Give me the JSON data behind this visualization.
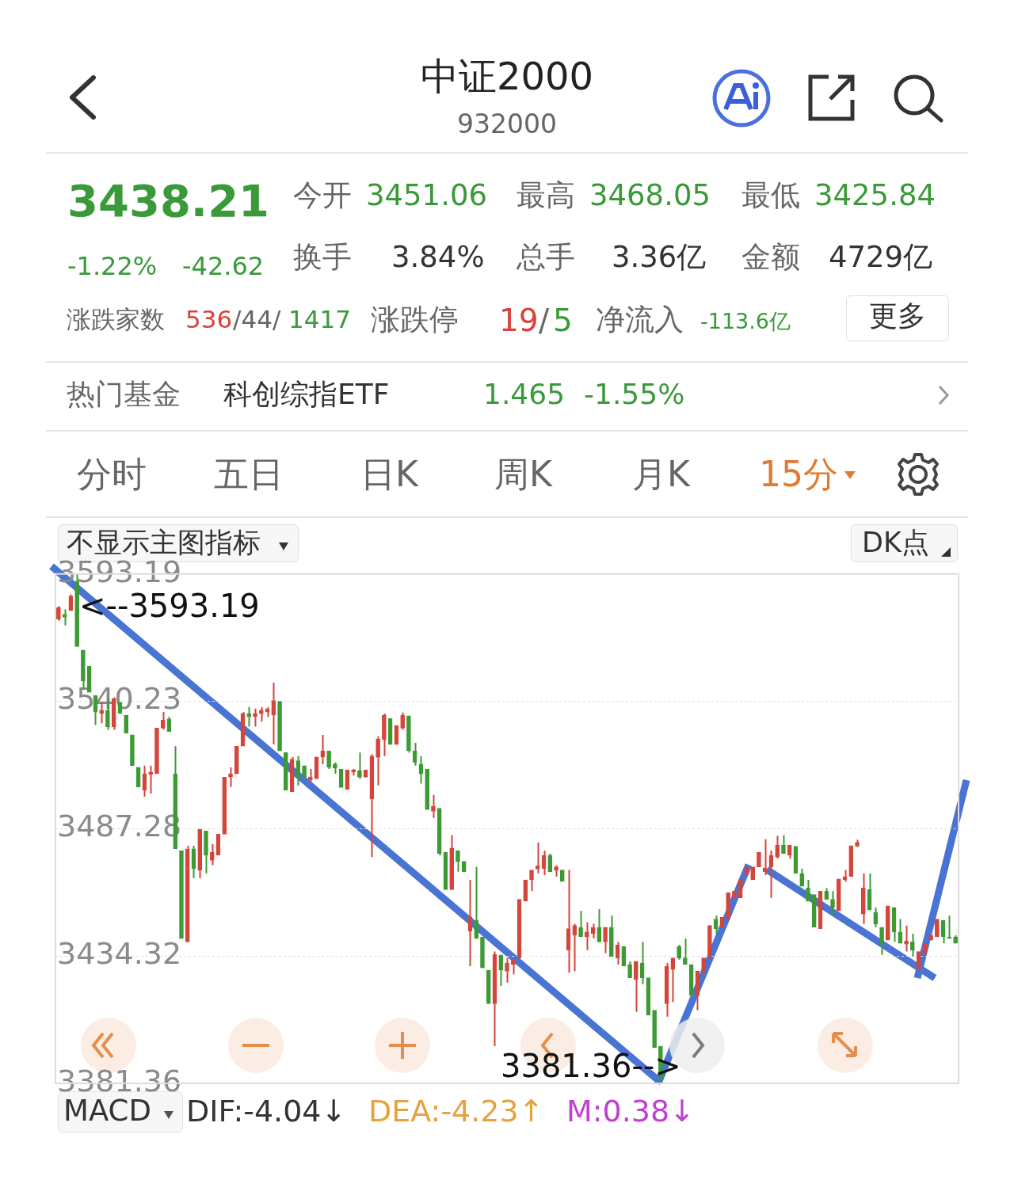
{
  "chart_data": {
    "type": "candlestick",
    "title": "中证2000",
    "subtitle": "932000",
    "categories": [
      null,
      null,
      null,
      null,
      null,
      null,
      null,
      null,
      null,
      null,
      null,
      null,
      null,
      null,
      null,
      null,
      null,
      null,
      null,
      null,
      null,
      null,
      null,
      null,
      null,
      null,
      null,
      null,
      null,
      null,
      null,
      null,
      null,
      null,
      null,
      null,
      null,
      null,
      null,
      null,
      null,
      null,
      null,
      null,
      null,
      null,
      null,
      null,
      null,
      null,
      null,
      null,
      null,
      null,
      null,
      null,
      null,
      null,
      null,
      null,
      null,
      null,
      null,
      null,
      null,
      null,
      null,
      null,
      null,
      null,
      null,
      null,
      null,
      null,
      null,
      null,
      null,
      null,
      null,
      null,
      null,
      null,
      null,
      null,
      null,
      null,
      null,
      null,
      null,
      null,
      null,
      null,
      null,
      null,
      null,
      null,
      null,
      null,
      null,
      null,
      null,
      null,
      null,
      null,
      null,
      null,
      null,
      null,
      null,
      null,
      null,
      null,
      null,
      null,
      null,
      null,
      null,
      null,
      null,
      null,
      null,
      null,
      null,
      null,
      null,
      null,
      null,
      null,
      null,
      null,
      null,
      null,
      null,
      null,
      null,
      null,
      null,
      null,
      null,
      null,
      null,
      null,
      null,
      null,
      null,
      null,
      null
    ],
    "ylim": [
      3381.36,
      3593.19
    ],
    "yticks": [
      3381.36,
      3434.32,
      3487.28,
      3540.23,
      3593.19
    ],
    "grid": "y",
    "tick_labels": "y",
    "legend": false,
    "ohlc": [
      [
        3574.5,
        3579.9,
        3573.8,
        3579.2
      ],
      [
        3576.5,
        3578.5,
        3571.8,
        3575.2
      ],
      [
        3577.9,
        3584.7,
        3577.9,
        3584.0
      ],
      [
        3590.1,
        3593.19,
        3563.0,
        3563.0
      ],
      [
        3561.6,
        3561.6,
        3545.3,
        3548.7
      ],
      [
        3554.8,
        3554.8,
        3544.0,
        3544.0
      ],
      [
        3542.6,
        3542.6,
        3530.4,
        3535.8
      ],
      [
        3535.2,
        3539.9,
        3531.1,
        3536.5
      ],
      [
        3536.5,
        3541.3,
        3528.4,
        3529.7
      ],
      [
        3529.7,
        3541.9,
        3528.4,
        3541.3
      ],
      [
        3539.9,
        3539.9,
        3535.2,
        3535.2
      ],
      [
        3534.5,
        3534.5,
        3527.0,
        3527.0
      ],
      [
        3526.3,
        3526.3,
        3513.5,
        3513.5
      ],
      [
        3512.8,
        3512.8,
        3504.6,
        3504.6
      ],
      [
        3503.3,
        3513.5,
        3500.6,
        3510.1
      ],
      [
        3509.8,
        3513.5,
        3501.9,
        3510.8
      ],
      [
        3510.1,
        3529.1,
        3510.1,
        3529.1
      ],
      [
        3529.1,
        3535.8,
        3528.4,
        3532.4
      ],
      [
        3532.9,
        3533.8,
        3527.7,
        3527.7
      ],
      [
        3510.1,
        3521.6,
        3478.9,
        3478.9
      ],
      [
        3478.2,
        3478.2,
        3441.6,
        3441.6
      ],
      [
        3440.2,
        3480.2,
        3440.2,
        3478.9
      ],
      [
        3478.9,
        3480.2,
        3466.7,
        3470.7
      ],
      [
        3470.1,
        3487.0,
        3466.7,
        3487.0
      ],
      [
        3486.3,
        3486.3,
        3468.7,
        3476.2
      ],
      [
        3474.1,
        3480.9,
        3472.1,
        3477.5
      ],
      [
        3476.2,
        3485.0,
        3476.2,
        3485.0
      ],
      [
        3485.0,
        3508.7,
        3485.0,
        3508.7
      ],
      [
        3508.7,
        3512.8,
        3504.6,
        3510.1
      ],
      [
        3510.1,
        3521.6,
        3510.1,
        3521.6
      ],
      [
        3521.6,
        3535.8,
        3521.6,
        3535.2
      ],
      [
        3535.2,
        3537.9,
        3529.7,
        3533.8
      ],
      [
        3533.8,
        3537.2,
        3529.7,
        3535.2
      ],
      [
        3535.2,
        3537.9,
        3531.8,
        3536.5
      ],
      [
        3535.8,
        3537.9,
        3533.8,
        3537.2
      ],
      [
        3534.5,
        3548.0,
        3522.3,
        3540.6
      ],
      [
        3540.2,
        3540.2,
        3519.6,
        3519.6
      ],
      [
        3518.9,
        3518.9,
        3503.3,
        3503.3
      ],
      [
        3502.6,
        3517.1,
        3502.6,
        3516.2
      ],
      [
        3515.5,
        3517.5,
        3505.3,
        3508.7
      ],
      [
        3513.5,
        3513.5,
        3508.7,
        3508.7
      ],
      [
        3507.4,
        3512.1,
        3506.7,
        3508.7
      ],
      [
        3508.0,
        3517.1,
        3508.0,
        3517.1
      ],
      [
        3517.1,
        3526.3,
        3514.1,
        3519.6
      ],
      [
        3519.6,
        3519.6,
        3512.1,
        3512.8
      ],
      [
        3514.1,
        3514.8,
        3510.1,
        3512.5
      ],
      [
        3512.1,
        3512.1,
        3504.4,
        3504.4
      ],
      [
        3503.6,
        3511.7,
        3503.6,
        3511.7
      ],
      [
        3510.8,
        3512.1,
        3509.4,
        3511.7
      ],
      [
        3511.4,
        3518.9,
        3508.0,
        3508.7
      ],
      [
        3508.7,
        3511.7,
        3508.7,
        3511.7
      ],
      [
        3499.5,
        3518.2,
        3475.5,
        3517.5
      ],
      [
        3516.9,
        3525.7,
        3505.3,
        3524.7
      ],
      [
        3524.3,
        3535.2,
        3517.5,
        3534.5
      ],
      [
        3533.1,
        3533.1,
        3522.3,
        3522.3
      ],
      [
        3522.3,
        3530.1,
        3522.3,
        3530.1
      ],
      [
        3529.1,
        3535.6,
        3528.4,
        3534.5
      ],
      [
        3534.2,
        3534.2,
        3518.9,
        3519.6
      ],
      [
        3519.6,
        3523.0,
        3513.5,
        3514.8
      ],
      [
        3514.1,
        3517.5,
        3506.0,
        3510.1
      ],
      [
        3512.1,
        3512.1,
        3495.2,
        3495.2
      ],
      [
        3494.5,
        3501.3,
        3491.8,
        3496.5
      ],
      [
        3495.8,
        3495.8,
        3476.2,
        3476.9
      ],
      [
        3477.5,
        3477.5,
        3461.9,
        3461.9
      ],
      [
        3461.9,
        3484.6,
        3461.9,
        3479.2
      ],
      [
        3478.2,
        3478.2,
        3469.4,
        3473.5
      ],
      [
        3473.7,
        3473.7,
        3469.4,
        3469.4
      ],
      [
        3444.7,
        3466.0,
        3430.1,
        3450.7
      ],
      [
        3449.1,
        3471.4,
        3441.6,
        3441.6
      ],
      [
        3442.3,
        3442.3,
        3429.4,
        3429.4
      ],
      [
        3428.4,
        3428.4,
        3414.5,
        3414.5
      ],
      [
        3414.5,
        3436.2,
        3396.8,
        3435.1
      ],
      [
        3434.8,
        3434.8,
        3421.9,
        3428.4
      ],
      [
        3428.0,
        3433.5,
        3423.3,
        3431.4
      ],
      [
        3430.8,
        3432.8,
        3426.7,
        3432.8
      ],
      [
        3433.5,
        3457.9,
        3433.5,
        3457.9
      ],
      [
        3457.2,
        3466.0,
        3457.2,
        3466.0
      ],
      [
        3466.0,
        3470.1,
        3461.3,
        3470.1
      ],
      [
        3470.5,
        3481.6,
        3468.7,
        3471.8
      ],
      [
        3470.7,
        3478.2,
        3468.0,
        3476.2
      ],
      [
        3476.2,
        3476.9,
        3469.4,
        3469.4
      ],
      [
        3470.1,
        3472.1,
        3467.4,
        3471.4
      ],
      [
        3470.1,
        3470.1,
        3465.3,
        3465.3
      ],
      [
        3436.8,
        3470.1,
        3427.4,
        3445.7
      ],
      [
        3443.0,
        3447.7,
        3428.0,
        3447.0
      ],
      [
        3446.3,
        3453.1,
        3442.3,
        3442.3
      ],
      [
        3442.3,
        3448.4,
        3436.8,
        3444.3
      ],
      [
        3443.6,
        3447.7,
        3441.6,
        3446.3
      ],
      [
        3446.3,
        3453.8,
        3440.2,
        3440.2
      ],
      [
        3440.2,
        3446.3,
        3435.5,
        3446.3
      ],
      [
        3446.3,
        3451.1,
        3434.1,
        3434.1
      ],
      [
        3433.5,
        3440.2,
        3430.8,
        3438.9
      ],
      [
        3438.2,
        3438.2,
        3430.1,
        3430.1
      ],
      [
        3430.8,
        3432.1,
        3425.3,
        3425.3
      ],
      [
        3424.6,
        3432.1,
        3411.1,
        3432.1
      ],
      [
        3431.4,
        3440.2,
        3422.6,
        3425.3
      ],
      [
        3425.3,
        3425.3,
        3409.7,
        3409.7
      ],
      [
        3411.8,
        3411.8,
        3396.2,
        3396.2
      ],
      [
        3396.8,
        3396.8,
        3381.36,
        3384.0
      ],
      [
        3414.5,
        3431.4,
        3409.1,
        3430.1
      ],
      [
        3428.7,
        3433.5,
        3415.2,
        3433.5
      ],
      [
        3438.2,
        3438.9,
        3432.8,
        3433.5
      ],
      [
        3433.5,
        3441.6,
        3430.8,
        3430.8
      ],
      [
        3430.8,
        3430.8,
        3417.9,
        3417.9
      ],
      [
        3417.9,
        3428.0,
        3411.8,
        3428.0
      ],
      [
        3427.4,
        3433.5,
        3427.4,
        3433.5
      ],
      [
        3433.5,
        3447.0,
        3433.5,
        3447.0
      ],
      [
        3449.7,
        3451.1,
        3443.6,
        3445.7
      ],
      [
        3446.3,
        3450.4,
        3446.3,
        3450.4
      ],
      [
        3449.7,
        3460.6,
        3449.7,
        3460.6
      ],
      [
        3458.5,
        3461.3,
        3458.5,
        3461.3
      ],
      [
        3458.5,
        3466.0,
        3458.5,
        3466.0
      ],
      [
        3468.0,
        3471.4,
        3468.0,
        3471.4
      ],
      [
        3466.0,
        3471.4,
        3466.0,
        3471.4
      ],
      [
        3471.4,
        3477.5,
        3471.4,
        3477.5
      ],
      [
        3469.4,
        3482.9,
        3468.0,
        3471.0
      ],
      [
        3471.4,
        3478.2,
        3458.5,
        3476.2
      ],
      [
        3475.5,
        3484.3,
        3474.8,
        3480.5
      ],
      [
        3480.5,
        3484.6,
        3476.9,
        3476.9
      ],
      [
        3476.2,
        3480.5,
        3474.8,
        3480.5
      ],
      [
        3480.0,
        3480.0,
        3468.7,
        3468.7
      ],
      [
        3468.7,
        3470.7,
        3463.3,
        3463.3
      ],
      [
        3462.6,
        3466.0,
        3457.2,
        3457.2
      ],
      [
        3459.9,
        3459.9,
        3446.3,
        3446.3
      ],
      [
        3445.7,
        3461.3,
        3445.7,
        3461.3
      ],
      [
        3461.3,
        3462.6,
        3457.9,
        3457.9
      ],
      [
        3457.9,
        3461.3,
        3451.1,
        3454.5
      ],
      [
        3453.1,
        3466.4,
        3453.1,
        3466.4
      ],
      [
        3466.0,
        3470.1,
        3465.3,
        3467.4
      ],
      [
        3467.4,
        3480.2,
        3467.4,
        3480.2
      ],
      [
        3480.0,
        3482.7,
        3479.6,
        3481.6
      ],
      [
        3451.8,
        3468.7,
        3447.7,
        3462.6
      ],
      [
        3461.9,
        3468.7,
        3453.4,
        3453.4
      ],
      [
        3452.4,
        3454.5,
        3446.3,
        3447.7
      ],
      [
        3446.3,
        3446.3,
        3434.8,
        3439.6
      ],
      [
        3440.9,
        3455.2,
        3440.9,
        3455.2
      ],
      [
        3454.5,
        3454.5,
        3440.2,
        3444.3
      ],
      [
        3444.3,
        3449.7,
        3439.6,
        3439.6
      ],
      [
        3439.3,
        3447.0,
        3436.2,
        3440.6
      ],
      [
        3440.2,
        3443.6,
        3434.1,
        3436.8
      ],
      [
        3428.7,
        3436.2,
        3428.7,
        3436.2
      ],
      [
        3435.5,
        3439.6,
        3435.5,
        3439.6
      ],
      [
        3440.9,
        3443.0,
        3440.9,
        3443.0
      ],
      [
        3442.3,
        3449.7,
        3442.3,
        3449.7
      ],
      [
        3449.1,
        3449.1,
        3439.6,
        3442.3
      ],
      [
        3442.3,
        3451.1,
        3441.6,
        3441.6
      ],
      [
        3442.3,
        3443.0,
        3439.6,
        3439.6
      ]
    ],
    "colors": [
      "#d4453b",
      "#3d9a33",
      "#d4453b",
      "#3d9a33",
      "#3d9a33",
      "#3d9a33",
      "#3d9a33",
      "#d4453b",
      "#3d9a33",
      "#d4453b",
      "#3d9a33",
      "#3d9a33",
      "#3d9a33",
      "#3d9a33",
      "#d4453b",
      "#d4453b",
      "#d4453b",
      "#d4453b",
      "#3d9a33",
      "#3d9a33",
      "#3d9a33",
      "#d4453b",
      "#3d9a33",
      "#d4453b",
      "#3d9a33",
      "#d4453b",
      "#d4453b",
      "#d4453b",
      "#d4453b",
      "#d4453b",
      "#d4453b",
      "#3d9a33",
      "#d4453b",
      "#d4453b",
      "#d4453b",
      "#d4453b",
      "#3d9a33",
      "#3d9a33",
      "#d4453b",
      "#3d9a33",
      "#3d9a33",
      "#d4453b",
      "#d4453b",
      "#d4453b",
      "#3d9a33",
      "#3d9a33",
      "#3d9a33",
      "#d4453b",
      "#d4453b",
      "#3d9a33",
      "#d4453b",
      "#d4453b",
      "#d4453b",
      "#d4453b",
      "#3d9a33",
      "#d4453b",
      "#d4453b",
      "#3d9a33",
      "#3d9a33",
      "#3d9a33",
      "#3d9a33",
      "#d4453b",
      "#3d9a33",
      "#3d9a33",
      "#d4453b",
      "#3d9a33",
      "#3d9a33",
      "#d4453b",
      "#3d9a33",
      "#3d9a33",
      "#3d9a33",
      "#d4453b",
      "#3d9a33",
      "#d4453b",
      "#d4453b",
      "#d4453b",
      "#d4453b",
      "#d4453b",
      "#d4453b",
      "#d4453b",
      "#3d9a33",
      "#d4453b",
      "#3d9a33",
      "#d4453b",
      "#d4453b",
      "#3d9a33",
      "#d4453b",
      "#d4453b",
      "#3d9a33",
      "#d4453b",
      "#3d9a33",
      "#d4453b",
      "#3d9a33",
      "#3d9a33",
      "#d4453b",
      "#3d9a33",
      "#3d9a33",
      "#3d9a33",
      "#3d9a33",
      "#d4453b",
      "#d4453b",
      "#3d9a33",
      "#3d9a33",
      "#3d9a33",
      "#d4453b",
      "#d4453b",
      "#d4453b",
      "#3d9a33",
      "#d4453b",
      "#d4453b",
      "#d4453b",
      "#d4453b",
      "#d4453b",
      "#d4453b",
      "#d4453b",
      "#d4453b",
      "#d4453b",
      "#d4453b",
      "#3d9a33",
      "#d4453b",
      "#3d9a33",
      "#3d9a33",
      "#3d9a33",
      "#3d9a33",
      "#d4453b",
      "#3d9a33",
      "#3d9a33",
      "#d4453b",
      "#d4453b",
      "#d4453b",
      "#d4453b",
      "#d4453b",
      "#3d9a33",
      "#3d9a33",
      "#3d9a33",
      "#d4453b",
      "#3d9a33",
      "#3d9a33",
      "#d4453b",
      "#3d9a33",
      "#d4453b",
      "#d4453b",
      "#d4453b",
      "#d4453b",
      "#3d9a33",
      "#3d9a33",
      "#3d9a33"
    ],
    "annotations": [
      "3438.21",
      "-1.22%",
      "-42.62",
      "今开",
      "3451.06",
      "最高",
      "3468.05",
      "最低",
      "3425.84",
      "换手",
      "3.84%",
      "总手",
      "3.36亿",
      "金额",
      "4729亿",
      "涨跌家数",
      "536",
      "/44/",
      "1417",
      "涨跌停",
      "19",
      "/",
      "5",
      "净流入",
      "-113.6亿",
      "更多",
      "热门基金",
      "科创综指ETF",
      "1.465",
      "-1.55%",
      "分时",
      "五日",
      "日K",
      "周K",
      "月K",
      "15分",
      "不显示主图指标",
      "DK点",
      "MACD",
      "DIF:-4.04↓",
      "DEA:-4.23↑",
      "M:0.38↓",
      "<--3593.19",
      "3381.36-->"
    ]
  }
}
